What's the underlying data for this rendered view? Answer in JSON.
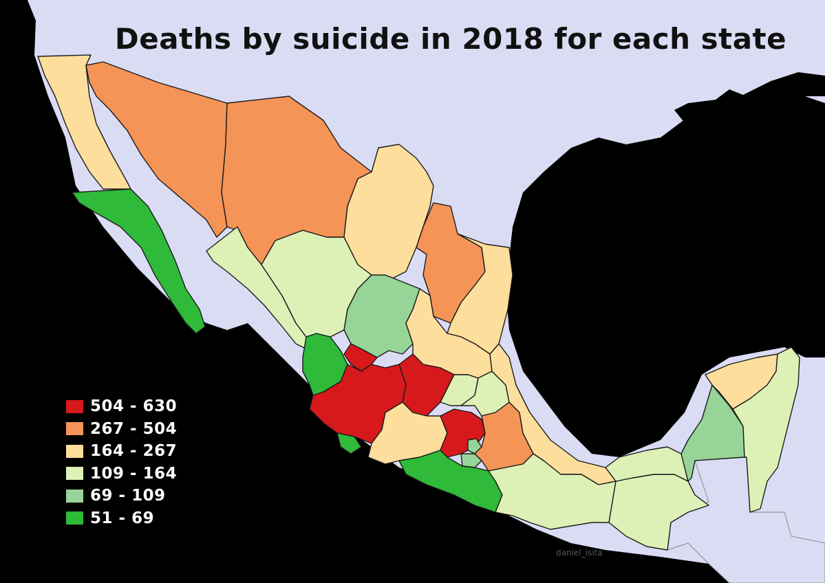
{
  "title": "Deaths by suicide in 2018 for each state",
  "watermark": "daniel_isita",
  "colors": {
    "ocean": "#dadcf4",
    "land_other": "#000000",
    "neighbor": "#dadcf4"
  },
  "legend": [
    {
      "label": "504 - 630",
      "color": "#d7191c",
      "key": "c1"
    },
    {
      "label": "267 - 504",
      "color": "#f59457",
      "key": "c2"
    },
    {
      "label": "164 - 267",
      "color": "#fdde9c",
      "key": "c3"
    },
    {
      "label": "109 - 164",
      "color": "#ddf1b7",
      "key": "c4"
    },
    {
      "label": "69 - 109",
      "color": "#96d597",
      "key": "c5"
    },
    {
      "label": "51 - 69",
      "color": "#2fba3a",
      "key": "c6"
    }
  ],
  "states": [
    {
      "name": "Baja California",
      "class": "c3"
    },
    {
      "name": "Baja California Sur",
      "class": "c6"
    },
    {
      "name": "Sonora",
      "class": "c2"
    },
    {
      "name": "Chihuahua",
      "class": "c2"
    },
    {
      "name": "Coahuila",
      "class": "c3"
    },
    {
      "name": "Nuevo León",
      "class": "c2"
    },
    {
      "name": "Tamaulipas",
      "class": "c3"
    },
    {
      "name": "Sinaloa",
      "class": "c4"
    },
    {
      "name": "Durango",
      "class": "c4"
    },
    {
      "name": "Zacatecas",
      "class": "c5"
    },
    {
      "name": "San Luis Potosí",
      "class": "c3"
    },
    {
      "name": "Nayarit",
      "class": "c6"
    },
    {
      "name": "Aguascalientes",
      "class": "c1"
    },
    {
      "name": "Jalisco",
      "class": "c1"
    },
    {
      "name": "Guanajuato",
      "class": "c1"
    },
    {
      "name": "Querétaro",
      "class": "c4"
    },
    {
      "name": "Hidalgo",
      "class": "c4"
    },
    {
      "name": "Colima",
      "class": "c6"
    },
    {
      "name": "Michoacán",
      "class": "c3"
    },
    {
      "name": "Estado de México",
      "class": "c1"
    },
    {
      "name": "Ciudad de México",
      "class": "c5"
    },
    {
      "name": "Tlaxcala",
      "class": "c6"
    },
    {
      "name": "Morelos",
      "class": "c5"
    },
    {
      "name": "Puebla",
      "class": "c2"
    },
    {
      "name": "Veracruz",
      "class": "c3"
    },
    {
      "name": "Guerrero",
      "class": "c6"
    },
    {
      "name": "Oaxaca",
      "class": "c4"
    },
    {
      "name": "Chiapas",
      "class": "c4"
    },
    {
      "name": "Tabasco",
      "class": "c4"
    },
    {
      "name": "Campeche",
      "class": "c5"
    },
    {
      "name": "Yucatán",
      "class": "c3"
    },
    {
      "name": "Quintana Roo",
      "class": "c4"
    }
  ]
}
